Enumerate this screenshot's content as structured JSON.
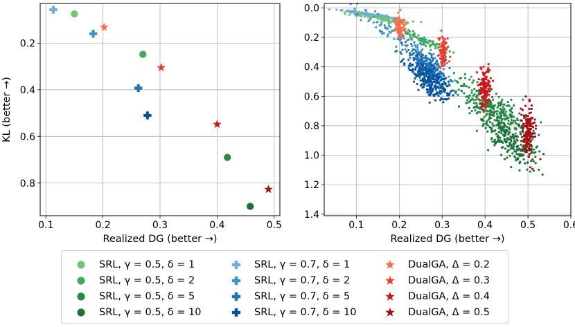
{
  "chart_data": [
    {
      "type": "scatter",
      "panel": "left",
      "xlabel": "Realized DG (better →)",
      "ylabel": "KL (better →)",
      "xlim": [
        0.09,
        0.51
      ],
      "ylim": [
        0.03,
        0.94
      ],
      "y_inverted": true,
      "grid": true,
      "xticks": [
        "0.1",
        "0.2",
        "0.3",
        "0.4",
        "0.5"
      ],
      "yticks": [
        "0.2",
        "0.4",
        "0.6",
        "0.8"
      ],
      "xtick_values": [
        0.1,
        0.2,
        0.3,
        0.4,
        0.5
      ],
      "ytick_values": [
        0.2,
        0.4,
        0.6,
        0.8
      ],
      "series": [
        {
          "name": "SRL, γ = 0.5, δ = 1",
          "marker": "circle",
          "color": "#74c476",
          "points": [
            [
              0.15,
              0.075
            ]
          ]
        },
        {
          "name": "SRL, γ = 0.5, δ = 2",
          "marker": "circle",
          "color": "#41ab5d",
          "points": [
            [
              0.27,
              0.248
            ]
          ]
        },
        {
          "name": "SRL, γ = 0.5, δ = 5",
          "marker": "circle",
          "color": "#238b45",
          "points": [
            [
              0.418,
              0.69
            ]
          ]
        },
        {
          "name": "SRL, γ = 0.5, δ = 10",
          "marker": "circle",
          "color": "#1b7437",
          "points": [
            [
              0.458,
              0.9
            ]
          ]
        },
        {
          "name": "SRL, γ = 0.7, δ = 1",
          "marker": "plus",
          "color": "#6baed6",
          "points": [
            [
              0.113,
              0.057
            ]
          ]
        },
        {
          "name": "SRL, γ = 0.7, δ = 2",
          "marker": "plus",
          "color": "#4292c6",
          "points": [
            [
              0.183,
              0.16
            ]
          ]
        },
        {
          "name": "SRL, γ = 0.7, δ = 5",
          "marker": "plus",
          "color": "#2171b5",
          "points": [
            [
              0.262,
              0.393
            ]
          ]
        },
        {
          "name": "SRL, γ = 0.7, δ = 10",
          "marker": "plus",
          "color": "#08519c",
          "points": [
            [
              0.278,
              0.51
            ]
          ]
        },
        {
          "name": "DualGA, Δ = 0.2",
          "marker": "star",
          "color": "#fb6a4a",
          "points": [
            [
              0.202,
              0.132
            ]
          ]
        },
        {
          "name": "DualGA, Δ = 0.3",
          "marker": "star",
          "color": "#ef3b2c",
          "points": [
            [
              0.302,
              0.305
            ]
          ]
        },
        {
          "name": "DualGA, Δ = 0.4",
          "marker": "star",
          "color": "#cb181d",
          "points": [
            [
              0.4,
              0.548
            ]
          ]
        },
        {
          "name": "DualGA, Δ = 0.5",
          "marker": "star",
          "color": "#a50f15",
          "points": [
            [
              0.49,
              0.827
            ]
          ]
        }
      ]
    },
    {
      "type": "scatter",
      "panel": "right",
      "xlabel": "Realized DG (better →)",
      "ylabel": "",
      "xlim": [
        0.025,
        0.6
      ],
      "ylim": [
        -0.03,
        1.41
      ],
      "y_inverted": true,
      "grid": true,
      "xticks": [
        "0.1",
        "0.2",
        "0.3",
        "0.4",
        "0.5",
        "0.6"
      ],
      "yticks": [
        "0.0",
        "0.2",
        "0.4",
        "0.6",
        "0.8",
        "1.0",
        "1.2",
        "1.4"
      ],
      "xtick_values": [
        0.1,
        0.2,
        0.3,
        0.4,
        0.5,
        0.6
      ],
      "ytick_values": [
        0.0,
        0.2,
        0.4,
        0.6,
        0.8,
        1.0,
        1.2,
        1.4
      ],
      "note": "Per-sample point clouds (hundreds of small dots) summarized as clusters: mean (cx, cy), spread (sx, sy) in data units, approximate count n.",
      "clusters": [
        {
          "series": "SRL, γ = 0.7, δ = 1",
          "color": "#6baed6",
          "cx": 0.14,
          "cy": 0.05,
          "sx": 0.04,
          "sy": 0.012,
          "n": 160,
          "shape": "line",
          "slope": 0.45
        },
        {
          "series": "SRL, γ = 0.5, δ = 1",
          "color": "#74c476",
          "cx": 0.16,
          "cy": 0.075,
          "sx": 0.035,
          "sy": 0.012,
          "n": 90,
          "shape": "line",
          "slope": 0.45
        },
        {
          "series": "SRL, γ = 0.5, δ = 2",
          "color": "#41ab5d",
          "cx": 0.255,
          "cy": 0.22,
          "sx": 0.03,
          "sy": 0.03,
          "n": 90,
          "shape": "line",
          "slope": 1.2
        },
        {
          "series": "SRL, γ = 0.7, δ = 2",
          "color": "#4292c6",
          "cx": 0.2,
          "cy": 0.2,
          "sx": 0.06,
          "sy": 0.06,
          "n": 110,
          "shape": "line",
          "slope": 1.8
        },
        {
          "series": "SRL, γ = 0.7, δ = 5",
          "color": "#2171b5",
          "cx": 0.265,
          "cy": 0.4,
          "sx": 0.028,
          "sy": 0.07,
          "n": 260,
          "shape": "blob"
        },
        {
          "series": "SRL, γ = 0.7, δ = 10",
          "color": "#08519c",
          "cx": 0.275,
          "cy": 0.51,
          "sx": 0.028,
          "sy": 0.08,
          "n": 220,
          "shape": "blob"
        },
        {
          "series": "SRL, γ = 0.5, δ = 5",
          "color": "#238b45",
          "cx": 0.42,
          "cy": 0.69,
          "sx": 0.045,
          "sy": 0.1,
          "n": 280,
          "shape": "blob"
        },
        {
          "series": "SRL, γ = 0.5, δ = 10",
          "color": "#1b7437",
          "cx": 0.46,
          "cy": 0.9,
          "sx": 0.035,
          "sy": 0.1,
          "n": 240,
          "shape": "blob"
        },
        {
          "series": "DualGA, Δ = 0.2",
          "color": "#fb6a4a",
          "cx": 0.202,
          "cy": 0.13,
          "sx": 0.006,
          "sy": 0.04,
          "n": 70,
          "shape": "column"
        },
        {
          "series": "DualGA, Δ = 0.3",
          "color": "#ef3b2c",
          "cx": 0.302,
          "cy": 0.3,
          "sx": 0.006,
          "sy": 0.055,
          "n": 90,
          "shape": "column"
        },
        {
          "series": "DualGA, Δ = 0.4",
          "color": "#cb181d",
          "cx": 0.4,
          "cy": 0.55,
          "sx": 0.007,
          "sy": 0.065,
          "n": 130,
          "shape": "column"
        },
        {
          "series": "DualGA, Δ = 0.5",
          "color": "#a50f15",
          "cx": 0.5,
          "cy": 0.83,
          "sx": 0.008,
          "sy": 0.09,
          "n": 160,
          "shape": "column"
        }
      ]
    }
  ],
  "legend": {
    "columns": [
      [
        {
          "label": "SRL, γ = 0.5, δ = 1",
          "marker": "circle",
          "color": "#74c476"
        },
        {
          "label": "SRL, γ = 0.5, δ = 2",
          "marker": "circle",
          "color": "#41ab5d"
        },
        {
          "label": "SRL, γ = 0.5, δ = 5",
          "marker": "circle",
          "color": "#238b45"
        },
        {
          "label": "SRL, γ = 0.5, δ = 10",
          "marker": "circle",
          "color": "#1b7437"
        }
      ],
      [
        {
          "label": "SRL, γ = 0.7, δ = 1",
          "marker": "plus",
          "color": "#6baed6"
        },
        {
          "label": "SRL, γ = 0.7, δ = 2",
          "marker": "plus",
          "color": "#4292c6"
        },
        {
          "label": "SRL, γ = 0.7, δ = 5",
          "marker": "plus",
          "color": "#2171b5"
        },
        {
          "label": "SRL, γ = 0.7, δ = 10",
          "marker": "plus",
          "color": "#08519c"
        }
      ],
      [
        {
          "label": "DualGA, Δ = 0.2",
          "marker": "star",
          "color": "#fb6a4a"
        },
        {
          "label": "DualGA, Δ = 0.3",
          "marker": "star",
          "color": "#ef3b2c"
        },
        {
          "label": "DualGA, Δ = 0.4",
          "marker": "star",
          "color": "#cb181d"
        },
        {
          "label": "DualGA, Δ = 0.5",
          "marker": "star",
          "color": "#a50f15"
        }
      ]
    ]
  }
}
